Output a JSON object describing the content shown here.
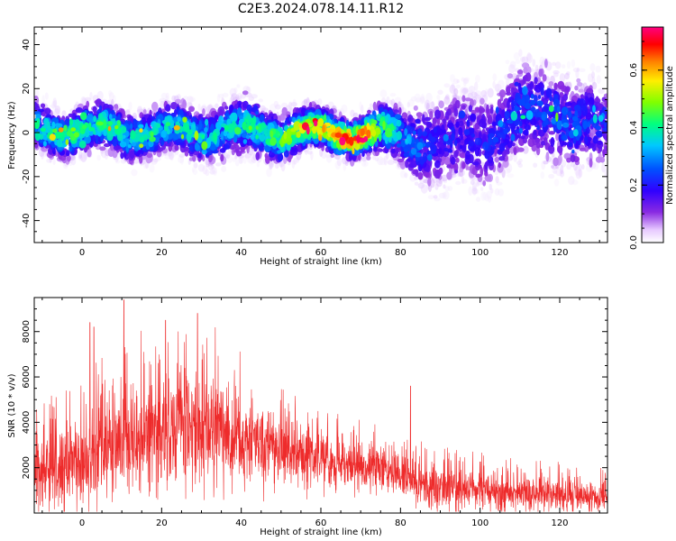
{
  "figure_title": "C2E3.2024.078.14.11.R12",
  "colors": {
    "snr_line": "#ee2b2b",
    "axis": "#000000"
  },
  "chart_data": [
    {
      "type": "heatmap",
      "xlabel": "Height of straight line (km)",
      "ylabel": "Frequency (Hz)",
      "xlim": [
        -12,
        132
      ],
      "ylim": [
        -50,
        48
      ],
      "xticks": [
        0,
        20,
        40,
        60,
        80,
        100,
        120
      ],
      "yticks": [
        -40,
        -20,
        0,
        20,
        40
      ],
      "colorbar": {
        "label": "Normalized spectral amplitude",
        "range": [
          0,
          0.75
        ],
        "ticks": [
          "0.0",
          "0.2",
          "0.4",
          "0.6"
        ],
        "colormap": "white-purple-blue-cyan-green-yellow-red-magenta"
      },
      "profile": [
        {
          "x": -12,
          "center": 2,
          "spread": 6,
          "peak": 0.35
        },
        {
          "x": 0,
          "center": 1,
          "spread": 6,
          "peak": 0.38
        },
        {
          "x": 20,
          "center": 0,
          "spread": 6,
          "peak": 0.33
        },
        {
          "x": 40,
          "center": 1,
          "spread": 7,
          "peak": 0.34
        },
        {
          "x": 60,
          "center": 0,
          "spread": 5,
          "peak": 0.5
        },
        {
          "x": 70,
          "center": 0,
          "spread": 5,
          "peak": 0.6
        },
        {
          "x": 80,
          "center": -2,
          "spread": 7,
          "peak": 0.3
        },
        {
          "x": 90,
          "center": -5,
          "spread": 12,
          "peak": 0.18
        },
        {
          "x": 100,
          "center": -3,
          "spread": 12,
          "peak": 0.18
        },
        {
          "x": 110,
          "center": 8,
          "spread": 12,
          "peak": 0.22
        },
        {
          "x": 120,
          "center": 8,
          "spread": 12,
          "peak": 0.25
        },
        {
          "x": 132,
          "center": 0,
          "spread": 10,
          "peak": 0.2
        }
      ]
    },
    {
      "type": "line",
      "xlabel": "Height of straight line (km)",
      "ylabel": "SNR (10 * v/v)",
      "xlim": [
        -12,
        132
      ],
      "ylim": [
        0,
        9500
      ],
      "xticks": [
        0,
        20,
        40,
        60,
        80,
        100,
        120
      ],
      "yticks": [
        2000,
        4000,
        6000,
        8000
      ],
      "envelope": [
        {
          "x": -12,
          "mean": 1800,
          "amp": 1500
        },
        {
          "x": -5,
          "mean": 1900,
          "amp": 1600
        },
        {
          "x": 5,
          "mean": 2700,
          "amp": 2000
        },
        {
          "x": 15,
          "mean": 3000,
          "amp": 2300
        },
        {
          "x": 25,
          "mean": 3700,
          "amp": 2500
        },
        {
          "x": 35,
          "mean": 3500,
          "amp": 2200
        },
        {
          "x": 45,
          "mean": 2800,
          "amp": 1500
        },
        {
          "x": 60,
          "mean": 2300,
          "amp": 1100
        },
        {
          "x": 75,
          "mean": 1900,
          "amp": 900
        },
        {
          "x": 85,
          "mean": 1300,
          "amp": 900
        },
        {
          "x": 100,
          "mean": 1000,
          "amp": 800
        },
        {
          "x": 120,
          "mean": 800,
          "amp": 700
        },
        {
          "x": 132,
          "mean": 700,
          "amp": 600
        }
      ],
      "spikes": [
        {
          "x": 10.5,
          "y": 9400
        },
        {
          "x": 2,
          "y": 8400
        },
        {
          "x": 29,
          "y": 8800
        },
        {
          "x": 21,
          "y": 8500
        },
        {
          "x": 3,
          "y": 8200
        },
        {
          "x": 82.5,
          "y": 5600
        }
      ]
    }
  ]
}
